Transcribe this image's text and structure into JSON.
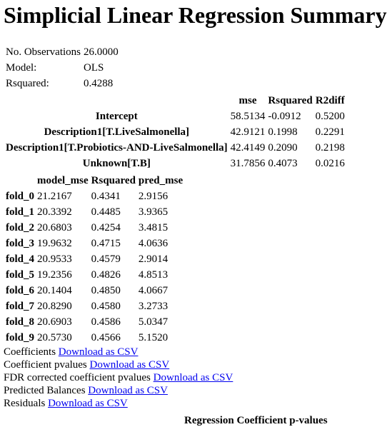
{
  "title": "Simplicial Linear Regression Summary",
  "summary": [
    {
      "label": "No. Observations",
      "value": "26.0000"
    },
    {
      "label": "Model:",
      "value": "OLS"
    },
    {
      "label": "Rsquared:",
      "value": "0.4288"
    }
  ],
  "coef_table": {
    "columns": [
      "mse",
      "Rsquared",
      "R2diff"
    ],
    "rows": [
      {
        "name": "Intercept",
        "values": [
          "58.5134",
          "-0.0912",
          "0.5200"
        ]
      },
      {
        "name": "Description1[T.LiveSalmonella]",
        "values": [
          "42.9121",
          "0.1998",
          "0.2291"
        ]
      },
      {
        "name": "Description1[T.Probiotics-AND-LiveSalmonella]",
        "values": [
          "42.4149",
          "0.2090",
          "0.2198"
        ]
      },
      {
        "name": "Unknown[T.B]",
        "values": [
          "31.7856",
          "0.4073",
          "0.0216"
        ]
      }
    ]
  },
  "cv_table": {
    "columns": [
      "model_mse",
      "Rsquared",
      "pred_mse"
    ],
    "rows": [
      {
        "name": "fold_0",
        "values": [
          "21.2167",
          "0.4341",
          "2.9156"
        ]
      },
      {
        "name": "fold_1",
        "values": [
          "20.3392",
          "0.4485",
          "3.9365"
        ]
      },
      {
        "name": "fold_2",
        "values": [
          "20.6803",
          "0.4254",
          "3.4815"
        ]
      },
      {
        "name": "fold_3",
        "values": [
          "19.9632",
          "0.4715",
          "4.0636"
        ]
      },
      {
        "name": "fold_4",
        "values": [
          "20.9533",
          "0.4579",
          "2.9014"
        ]
      },
      {
        "name": "fold_5",
        "values": [
          "19.2356",
          "0.4826",
          "4.8513"
        ]
      },
      {
        "name": "fold_6",
        "values": [
          "20.1404",
          "0.4850",
          "4.0667"
        ]
      },
      {
        "name": "fold_7",
        "values": [
          "20.8290",
          "0.4580",
          "3.2733"
        ]
      },
      {
        "name": "fold_8",
        "values": [
          "20.6903",
          "0.4586",
          "5.0347"
        ]
      },
      {
        "name": "fold_9",
        "values": [
          "20.5730",
          "0.4566",
          "5.1520"
        ]
      }
    ]
  },
  "downloads": [
    {
      "label": "Coefficients",
      "link": "Download as CSV"
    },
    {
      "label": "Coefficient pvalues",
      "link": "Download as CSV"
    },
    {
      "label": "FDR corrected coefficient pvalues",
      "link": "Download as CSV"
    },
    {
      "label": "Predicted Balances",
      "link": "Download as CSV"
    },
    {
      "label": "Residuals",
      "link": "Download as CSV"
    }
  ],
  "cut_heading": "Regression Coefficient p-values",
  "colors": {
    "link": "#0000ee",
    "text": "#000000",
    "background": "#ffffff"
  }
}
